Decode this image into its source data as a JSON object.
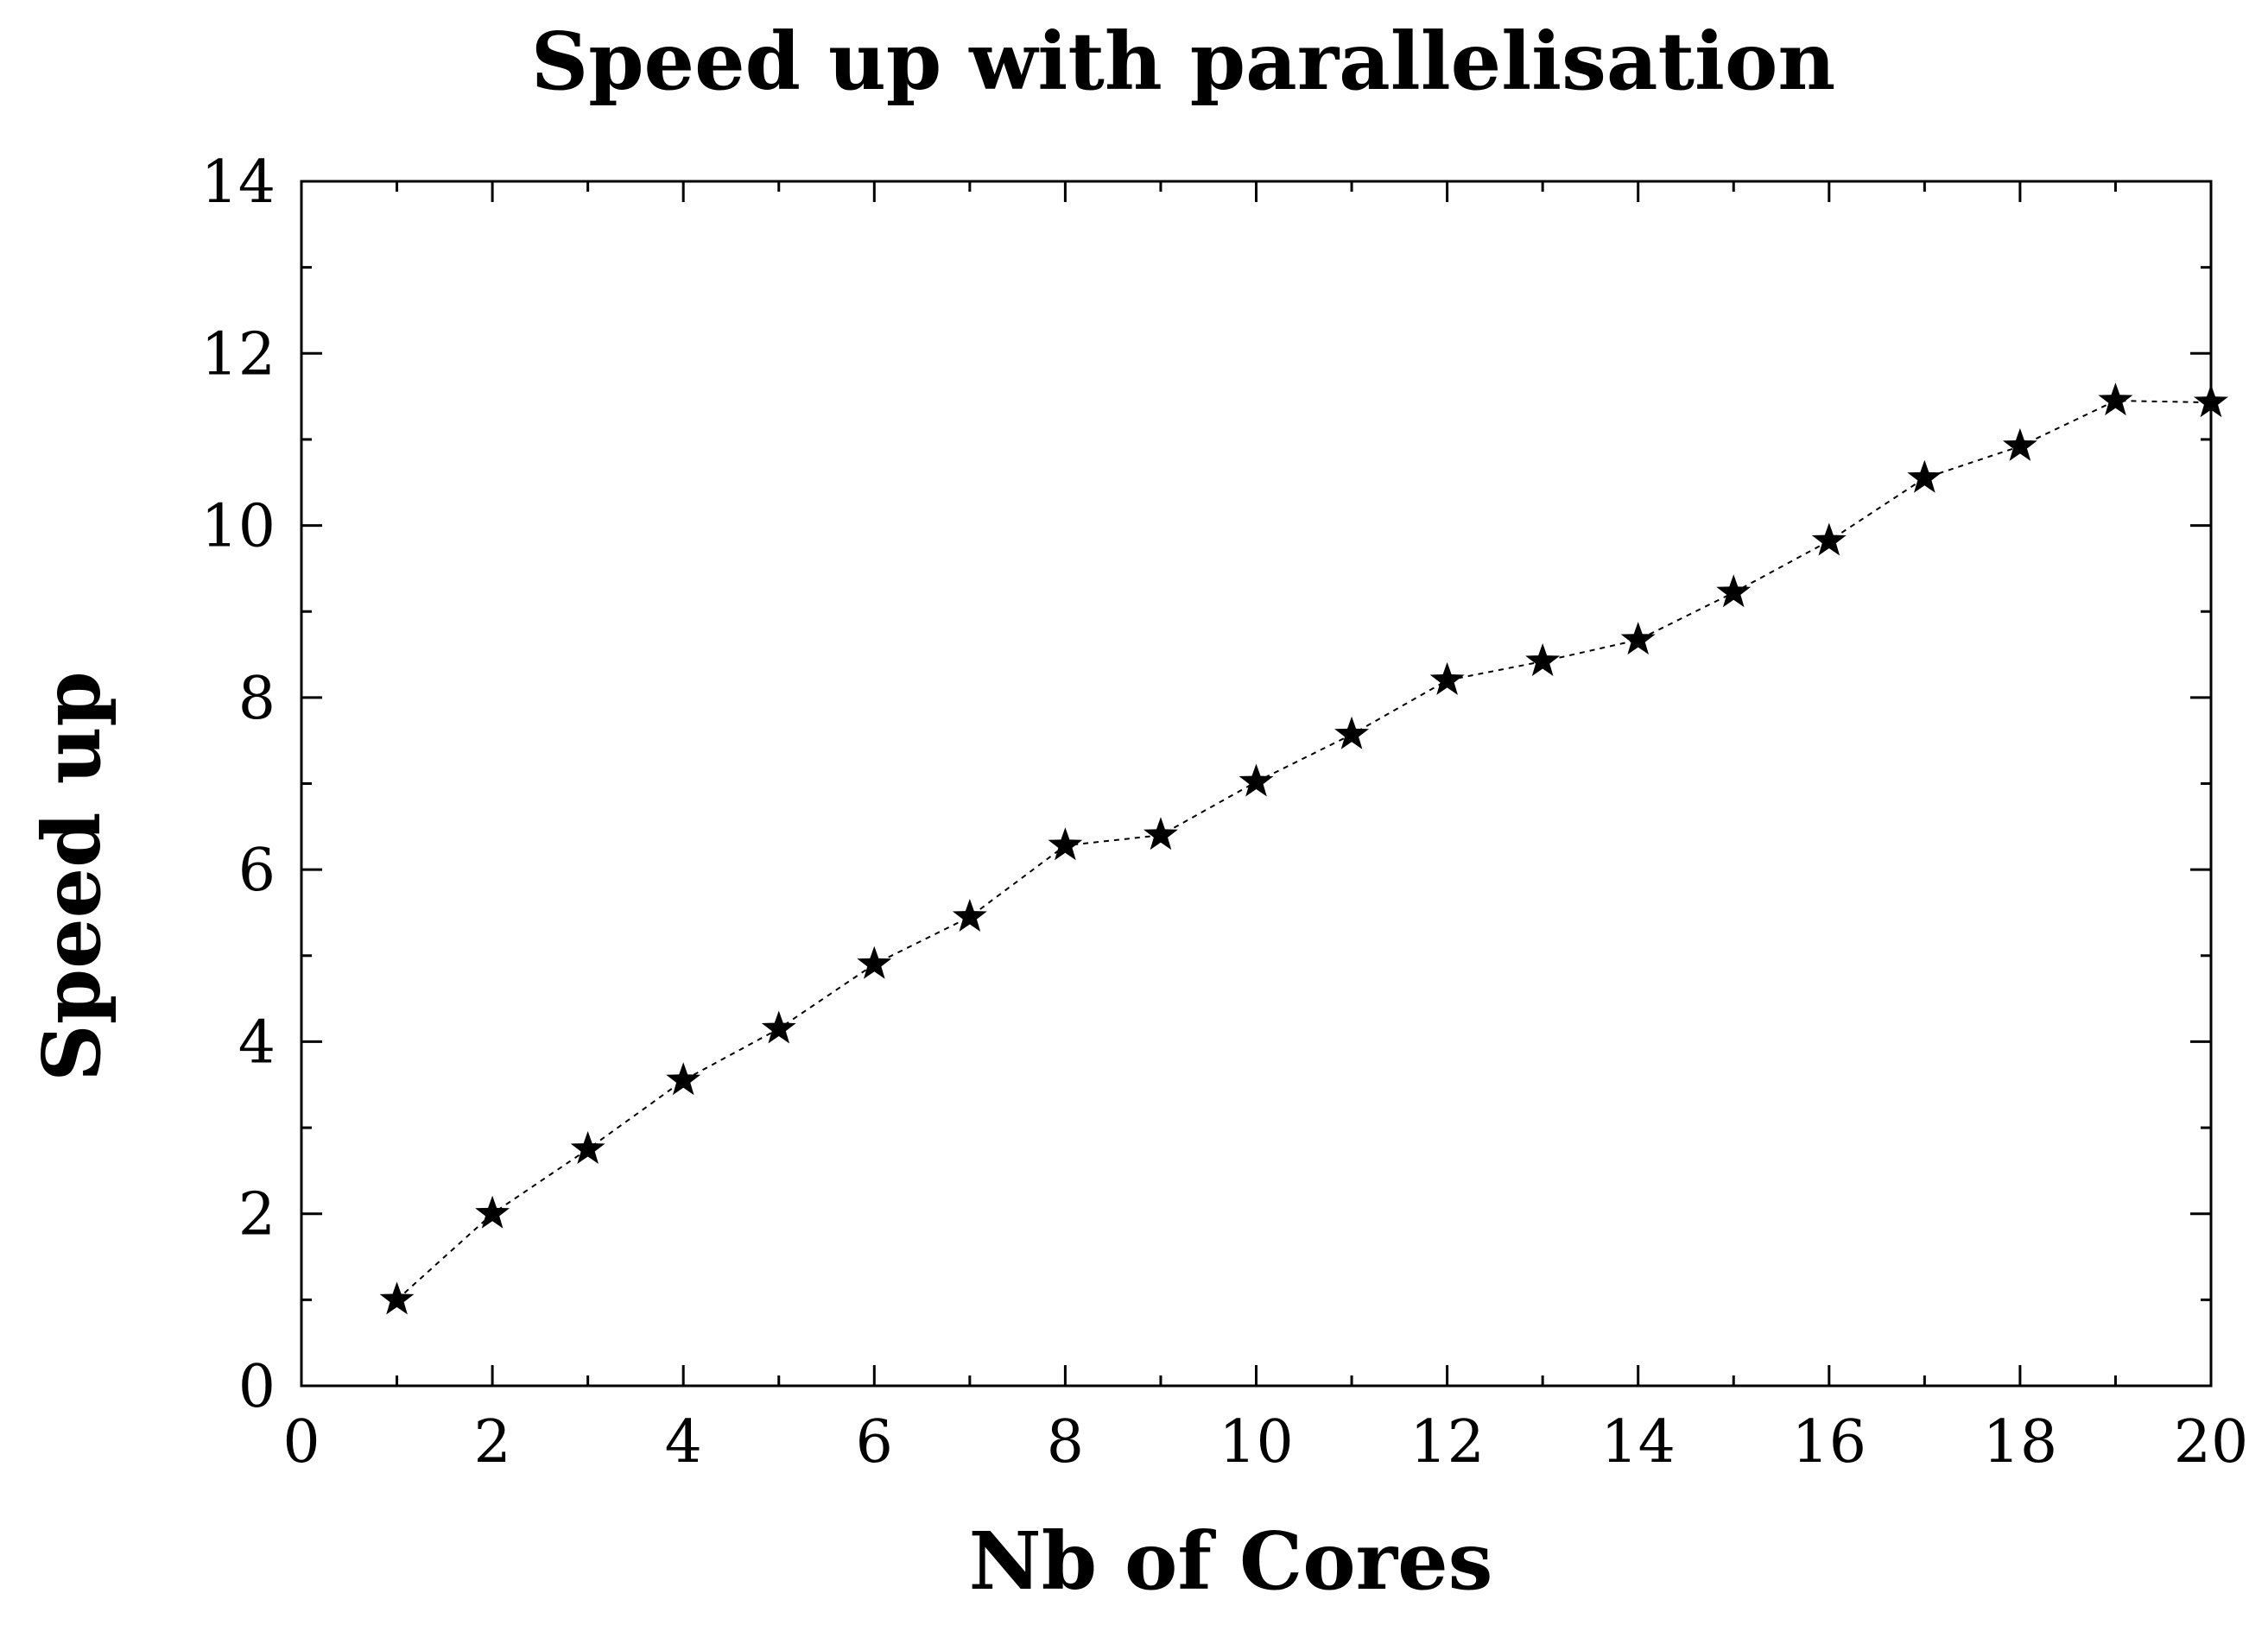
{
  "chart_data": {
    "type": "line",
    "title": "Speed up with parallelisation",
    "xlabel": "Nb of Cores",
    "ylabel": "Speed up",
    "xlim": [
      0,
      20
    ],
    "ylim": [
      0,
      14
    ],
    "xticks": [
      0,
      2,
      4,
      6,
      8,
      10,
      12,
      14,
      16,
      18,
      20
    ],
    "yticks": [
      0,
      2,
      4,
      6,
      8,
      10,
      12,
      14
    ],
    "xtick_labels": [
      "0",
      "2",
      "4",
      "6",
      "8",
      "10",
      "12",
      "14",
      "16",
      "18",
      "20"
    ],
    "ytick_labels": [
      "0",
      "2",
      "4",
      "6",
      "8",
      "10",
      "12",
      "14"
    ],
    "grid": false,
    "legend": null,
    "series": [
      {
        "name": "Speed up",
        "marker": "star",
        "line_style": "dotted",
        "color": "#000000",
        "x": [
          1,
          2,
          3,
          4,
          5,
          6,
          7,
          8,
          9,
          10,
          11,
          12,
          13,
          14,
          15,
          16,
          17,
          18,
          19,
          20
        ],
        "y": [
          1.0,
          2.0,
          2.75,
          3.55,
          4.15,
          4.9,
          5.45,
          6.28,
          6.4,
          7.02,
          7.57,
          8.2,
          8.42,
          8.67,
          9.22,
          9.82,
          10.55,
          10.92,
          11.45,
          11.43
        ]
      }
    ]
  }
}
